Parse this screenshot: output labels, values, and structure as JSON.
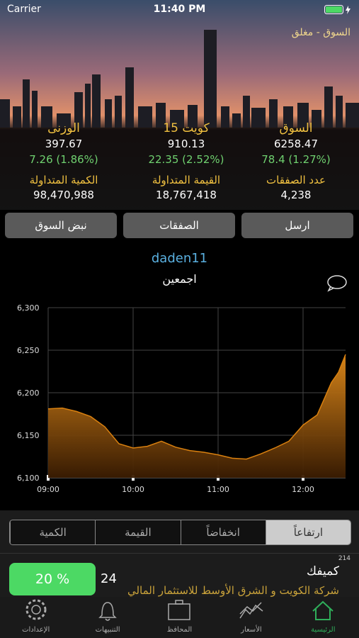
{
  "status_bar": {
    "carrier": "Carrier",
    "time": "11:40 PM"
  },
  "header": {
    "market_status": "السوق - مغلق"
  },
  "indices": [
    {
      "title": "السوق",
      "value": "6258.47",
      "change": "78.4 (1.27%)"
    },
    {
      "title": "كويت 15",
      "value": "910.13",
      "change": "22.35 (2.52%)"
    },
    {
      "title": "الوزنى",
      "value": "397.67",
      "change": "7.26 (1.86%)"
    }
  ],
  "stats": [
    {
      "label": "عدد الصفقات",
      "value": "4,238"
    },
    {
      "label": "القيمة المتداولة",
      "value": "18,767,418"
    },
    {
      "label": "الكمية المتداولة",
      "value": "98,470,988"
    }
  ],
  "buttons": [
    "ارسل",
    "الصفقات",
    "نبض السوق"
  ],
  "post": {
    "username": "daden11",
    "text": "اجمعين"
  },
  "chart_data": {
    "type": "area",
    "color": "#d9800f",
    "x": [
      "09:00",
      "09:10",
      "09:20",
      "09:30",
      "09:40",
      "09:50",
      "10:00",
      "10:10",
      "10:20",
      "10:30",
      "10:40",
      "10:50",
      "11:00",
      "11:10",
      "11:20",
      "11:30",
      "11:40",
      "11:50",
      "12:00",
      "12:10",
      "12:20",
      "12:25",
      "12:30"
    ],
    "values": [
      6181,
      6182,
      6178,
      6172,
      6160,
      6140,
      6135,
      6137,
      6143,
      6136,
      6132,
      6130,
      6127,
      6123,
      6122,
      6128,
      6135,
      6143,
      6162,
      6174,
      6212,
      6224,
      6245
    ],
    "xlim": [
      "09:00",
      "12:30"
    ],
    "xticks": [
      "09:00",
      "10:00",
      "11:00",
      "12:00"
    ],
    "ylim": [
      6100,
      6300
    ],
    "yticks": [
      {
        "value": 6100,
        "label": "6,100"
      },
      {
        "value": 6150,
        "label": "6,150"
      },
      {
        "value": 6200,
        "label": "6,200"
      },
      {
        "value": 6250,
        "label": "6,250"
      },
      {
        "value": 6300,
        "label": "6,300"
      }
    ],
    "grid": true
  },
  "tabs": {
    "items": [
      "ارتفاعاً",
      "انخفاضاً",
      "القيمة",
      "الكمية"
    ],
    "selected": 0
  },
  "list_item": {
    "count": "214",
    "name": "كميفك",
    "description": "شركة الكويت و الشرق الأوسط للاستثمار المالي",
    "rank": "24",
    "change": "20 %"
  },
  "tab_bar": [
    "الرئيسية",
    "الأسعار",
    "المحافظ",
    "التنبيهات",
    "الإعدادات"
  ]
}
